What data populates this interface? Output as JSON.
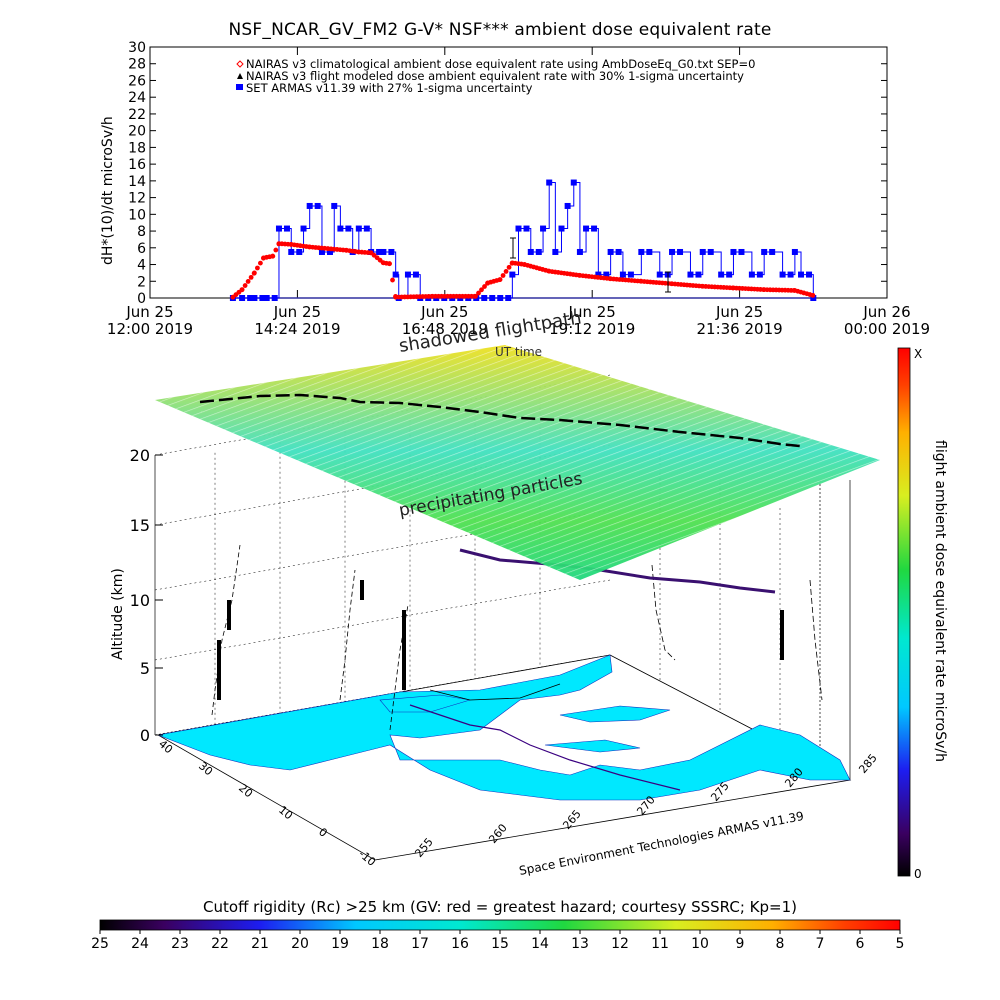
{
  "chart_data": [
    {
      "type": "scatter",
      "title": "NSF_NCAR_GV_FM2 G-V* NSF*** ambient dose equivalent rate",
      "ylabel": "dH*(10)/dt microSv/h",
      "xlabel": "UT time",
      "ylim": [
        0,
        30
      ],
      "yticks": [
        "0",
        "2",
        "4",
        "6",
        "8",
        "10",
        "12",
        "14",
        "16",
        "18",
        "20",
        "22",
        "24",
        "26",
        "28",
        "30"
      ],
      "xlim_hours": [
        12,
        24
      ],
      "xticks": [
        {
          "top": "Jun 25",
          "bottom": "12:00 2019",
          "hour": 12.0
        },
        {
          "top": "Jun 25",
          "bottom": "14:24 2019",
          "hour": 14.4
        },
        {
          "top": "Jun 25",
          "bottom": "16:48 2019",
          "hour": 16.8
        },
        {
          "top": "Jun 25",
          "bottom": "19:12 2019",
          "hour": 19.2
        },
        {
          "top": "Jun 25",
          "bottom": "21:36 2019",
          "hour": 21.6
        },
        {
          "top": "Jun 26",
          "bottom": "00:00 2019",
          "hour": 24.0
        }
      ],
      "legend": [
        {
          "label": "NAIRAS v3 climatological ambient dose equivalent rate using AmbDoseEq_G0.txt SEP=0",
          "color": "#ff0000",
          "marker": "diamond"
        },
        {
          "label": "NAIRAS v3 flight modeled dose ambient equivalent rate with 30% 1-sigma uncertainty",
          "color": "#000000",
          "marker": "triangle"
        },
        {
          "label": "SET ARMAS v11.39 with 27% 1-sigma uncertainty",
          "color": "#0000ff",
          "marker": "square"
        }
      ],
      "series": [
        {
          "name": "NAIRAS v3 climatological ambient dose equivalent rate using AmbDoseEq_G0.txt SEP=0",
          "x": [
            13.35,
            13.5,
            13.7,
            13.85,
            14.0,
            14.1,
            14.3,
            14.6,
            14.9,
            15.2,
            15.4,
            15.6,
            15.8,
            15.9,
            16.0,
            16.6,
            17.3,
            17.5,
            17.7,
            17.9,
            18.1,
            18.5,
            19.0,
            19.5,
            20.0,
            20.5,
            21.0,
            21.5,
            22.0,
            22.5,
            22.8
          ],
          "values": [
            0.1,
            1.0,
            3.0,
            4.8,
            5.0,
            6.5,
            6.4,
            6.1,
            5.9,
            5.7,
            5.5,
            5.4,
            4.2,
            4.1,
            0.1,
            0.2,
            0.2,
            1.8,
            2.2,
            4.2,
            4.0,
            3.2,
            2.7,
            2.3,
            2.0,
            1.7,
            1.4,
            1.2,
            1.0,
            0.9,
            0.3
          ]
        },
        {
          "name": "SET ARMAS v11.39 with 27% 1-sigma uncertainty",
          "x": [
            13.35,
            13.5,
            13.7,
            13.9,
            14.1,
            14.3,
            14.5,
            14.6,
            14.8,
            15.0,
            15.1,
            15.3,
            15.4,
            15.6,
            15.8,
            16.0,
            16.05,
            16.2,
            16.4,
            17.9,
            18.0,
            18.2,
            18.4,
            18.5,
            18.6,
            18.7,
            18.8,
            18.9,
            19.0,
            19.1,
            19.3,
            19.5,
            19.7,
            20.0,
            20.3,
            20.5,
            20.8,
            21.0,
            21.3,
            21.5,
            21.8,
            22.0,
            22.3,
            22.5,
            22.6,
            22.8
          ],
          "values": [
            0.0,
            0.0,
            0.0,
            0.0,
            8.3,
            5.5,
            8.3,
            11.0,
            5.5,
            11.0,
            8.3,
            5.5,
            8.3,
            5.5,
            5.5,
            2.8,
            0.0,
            2.8,
            0.0,
            2.8,
            8.3,
            5.5,
            8.3,
            13.8,
            5.5,
            8.3,
            11.0,
            13.8,
            5.5,
            8.3,
            2.8,
            5.5,
            2.8,
            5.5,
            2.8,
            5.5,
            2.8,
            5.5,
            2.8,
            5.5,
            2.8,
            5.5,
            2.8,
            5.5,
            2.8,
            0.0
          ]
        }
      ]
    },
    {
      "type": "3d-surface",
      "zlabel": "Altitude (km)",
      "zticks": [
        "0",
        "5",
        "10",
        "15",
        "20"
      ],
      "lat_ticks": [
        "40",
        "30",
        "20",
        "10",
        "0",
        "-10"
      ],
      "lon_ticks": [
        "255",
        "260",
        "265",
        "270",
        "275",
        "280",
        "285"
      ],
      "annotations": {
        "shadowed": "shadowed flightpath",
        "precipitating": "precipitating particles",
        "credit": "Space Environment Technologies ARMAS v11.39"
      },
      "colorbar_right": {
        "label": "flight ambient dose equivalent rate microSv/h",
        "top": "X",
        "bottom": "0"
      },
      "colorbar_bottom": {
        "title": "Cutoff rigidity (Rc) >25 km (GV: red = greatest hazard; courtesy SSSRC; Kp=1)",
        "ticks": [
          "25",
          "24",
          "23",
          "22",
          "21",
          "20",
          "19",
          "18",
          "17",
          "16",
          "15",
          "14",
          "13",
          "12",
          "11",
          "10",
          "9",
          "8",
          "7",
          "6",
          "5"
        ]
      }
    }
  ]
}
